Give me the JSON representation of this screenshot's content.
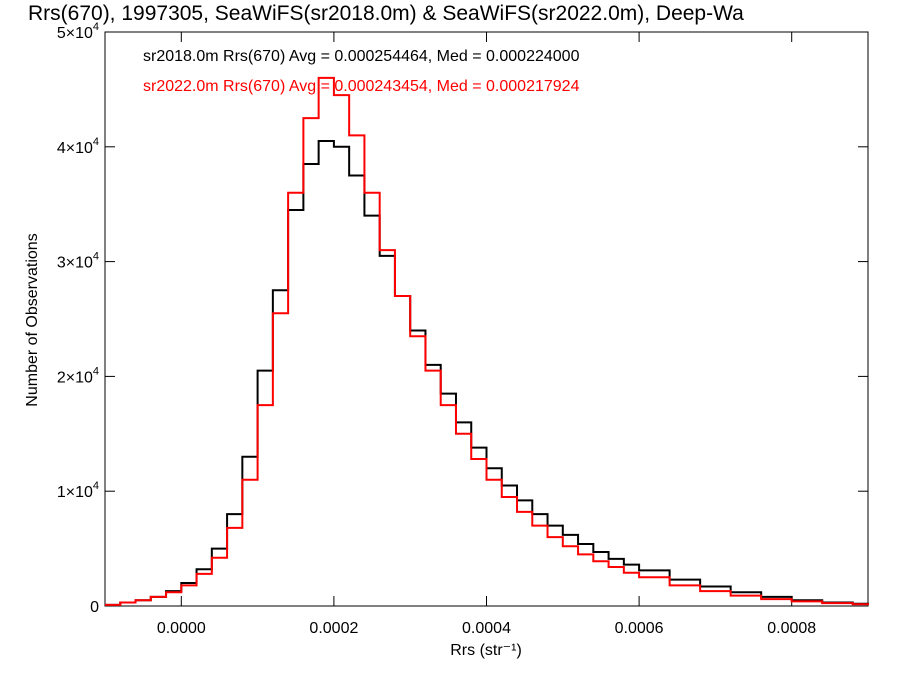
{
  "chart_data": {
    "type": "line",
    "title": "Rrs(670), 1997305, SeaWiFS(sr2018.0m) & SeaWiFS(sr2022.0m), Deep-Wa",
    "xlabel": "Rrs (str⁻¹)",
    "ylabel": "Number of Observations",
    "xlim": [
      -0.0001,
      0.0009
    ],
    "ylim": [
      0,
      50000
    ],
    "x_ticks": [
      0.0,
      0.0002,
      0.0004,
      0.0006,
      0.0008
    ],
    "x_tick_labels": [
      "0.0000",
      "0.0002",
      "0.0004",
      "0.0006",
      "0.0008"
    ],
    "y_ticks": [
      0,
      10000,
      20000,
      30000,
      40000,
      50000
    ],
    "y_tick_labels": [
      {
        "mantissa": "0",
        "exp": ""
      },
      {
        "mantissa": "1×10",
        "exp": "4"
      },
      {
        "mantissa": "2×10",
        "exp": "4"
      },
      {
        "mantissa": "3×10",
        "exp": "4"
      },
      {
        "mantissa": "4×10",
        "exp": "4"
      },
      {
        "mantissa": "5×10",
        "exp": "4"
      }
    ],
    "grid": false,
    "series": [
      {
        "name": "sr2018.0m",
        "label": "sr2018.0m Rrs(670) Avg = 0.000254464, Med = 0.000224000",
        "color": "#000000",
        "x": [
          -0.0001,
          -8e-05,
          -6e-05,
          -4e-05,
          -2e-05,
          0.0,
          2e-05,
          4e-05,
          6e-05,
          8e-05,
          0.0001,
          0.00012,
          0.00014,
          0.00016,
          0.00018,
          0.0002,
          0.00022,
          0.00024,
          0.00026,
          0.00028,
          0.0003,
          0.00032,
          0.00034,
          0.00036,
          0.00038,
          0.0004,
          0.00042,
          0.00044,
          0.00046,
          0.00048,
          0.0005,
          0.00052,
          0.00054,
          0.00056,
          0.00058,
          0.0006,
          0.00064,
          0.00068,
          0.00072,
          0.00076,
          0.0008,
          0.00084,
          0.00088,
          0.0009
        ],
        "y": [
          100,
          300,
          500,
          800,
          1300,
          2000,
          3200,
          5000,
          8000,
          13000,
          20500,
          27500,
          34500,
          38500,
          40500,
          40000,
          37500,
          34000,
          30500,
          27000,
          24000,
          21000,
          18500,
          16000,
          13800,
          12000,
          10500,
          9200,
          8000,
          7000,
          6200,
          5400,
          4700,
          4100,
          3600,
          3100,
          2300,
          1700,
          1200,
          800,
          500,
          300,
          200,
          100
        ]
      },
      {
        "name": "sr2022.0m",
        "label": "sr2022.0m Rrs(670) Avg = 0.000243454, Med = 0.000217924",
        "color": "#ff0000",
        "x": [
          -0.0001,
          -8e-05,
          -6e-05,
          -4e-05,
          -2e-05,
          0.0,
          2e-05,
          4e-05,
          6e-05,
          8e-05,
          0.0001,
          0.00012,
          0.00014,
          0.00016,
          0.00018,
          0.0002,
          0.00022,
          0.00024,
          0.00026,
          0.00028,
          0.0003,
          0.00032,
          0.00034,
          0.00036,
          0.00038,
          0.0004,
          0.00042,
          0.00044,
          0.00046,
          0.00048,
          0.0005,
          0.00052,
          0.00054,
          0.00056,
          0.00058,
          0.0006,
          0.00064,
          0.00068,
          0.00072,
          0.00076,
          0.0008,
          0.00084,
          0.00088,
          0.0009
        ],
        "y": [
          100,
          300,
          500,
          800,
          1200,
          1800,
          2800,
          4200,
          6800,
          11000,
          17500,
          25500,
          36000,
          42500,
          46000,
          44500,
          41000,
          36000,
          31000,
          27000,
          23500,
          20500,
          17500,
          15000,
          12800,
          11000,
          9500,
          8200,
          7000,
          6000,
          5200,
          4500,
          3900,
          3400,
          2900,
          2500,
          1800,
          1300,
          900,
          600,
          400,
          250,
          150,
          80
        ]
      }
    ]
  }
}
